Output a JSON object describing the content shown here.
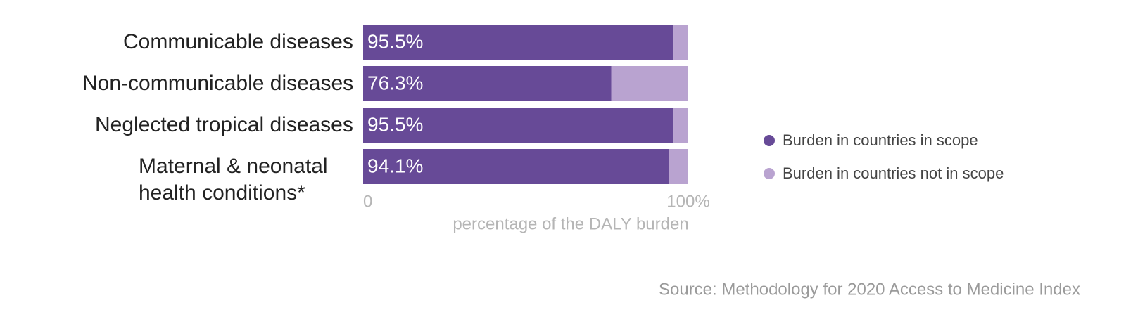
{
  "chart_data": {
    "type": "stacked-bar-horizontal",
    "categories": [
      "Communicable diseases",
      "Non-communicable diseases",
      "Neglected tropical diseases",
      "Maternal & neonatal health conditions*"
    ],
    "series": [
      {
        "name": "Burden in countries in scope",
        "color": "#674a97",
        "values": [
          95.5,
          76.3,
          95.5,
          94.1
        ],
        "value_labels": [
          "95.5%",
          "76.3%",
          "95.5%",
          "94.1%"
        ]
      },
      {
        "name": "Burden in countries not in scope",
        "color": "#b9a3d0",
        "values": [
          4.5,
          23.7,
          4.5,
          5.9
        ]
      }
    ],
    "xlim": [
      0,
      100
    ],
    "xticks": [
      0,
      {
        "value": 100,
        "label": "100%"
      }
    ],
    "xlabel": "percentage of the DALY burden",
    "legend": "right",
    "source": "Source: Methodology for 2020 Access to Medicine Index"
  }
}
